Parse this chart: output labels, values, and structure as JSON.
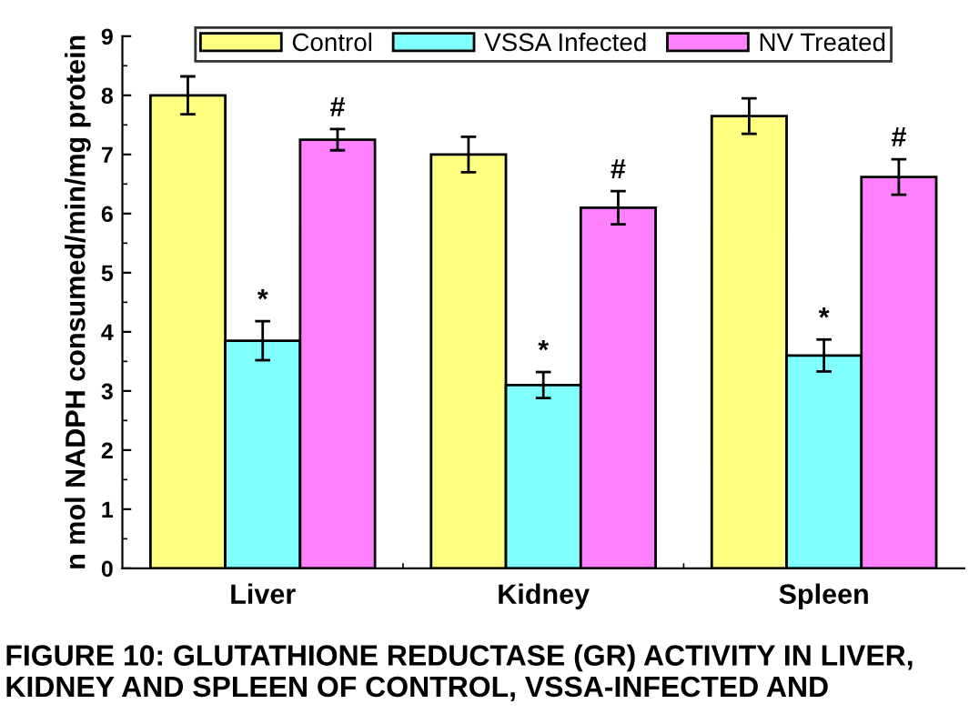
{
  "chart_data": {
    "type": "bar",
    "ylabel": "n mol NADPH consumed/min/mg protein",
    "categories": [
      "Liver",
      "Kidney",
      "Spleen"
    ],
    "series": [
      {
        "name": "Control",
        "color": "#ffff80",
        "values": [
          8.0,
          7.0,
          7.65
        ],
        "errors": [
          0.32,
          0.3,
          0.3
        ]
      },
      {
        "name": "VSSA Infected",
        "color": "#80ffff",
        "values": [
          3.85,
          3.1,
          3.6
        ],
        "errors": [
          0.33,
          0.22,
          0.27
        ],
        "value_labels": [
          "*",
          "*",
          "*"
        ]
      },
      {
        "name": "NV Treated",
        "color": "#ff80ff",
        "values": [
          7.25,
          6.1,
          6.62
        ],
        "errors": [
          0.18,
          0.28,
          0.3
        ],
        "value_labels": [
          "#",
          "#",
          "#"
        ]
      }
    ],
    "ylim": [
      0,
      9
    ],
    "yticks": [
      0,
      1,
      2,
      3,
      4,
      5,
      6,
      7,
      8,
      9
    ],
    "grid": false,
    "legend": "top",
    "annotations": [
      "FIGURE 10: GLUTATHIONE REDUCTASE (GR) ACTIVITY IN LIVER, KIDNEY AND SPLEEN OF CONTROL, VSSA-INFECTED AND"
    ]
  }
}
